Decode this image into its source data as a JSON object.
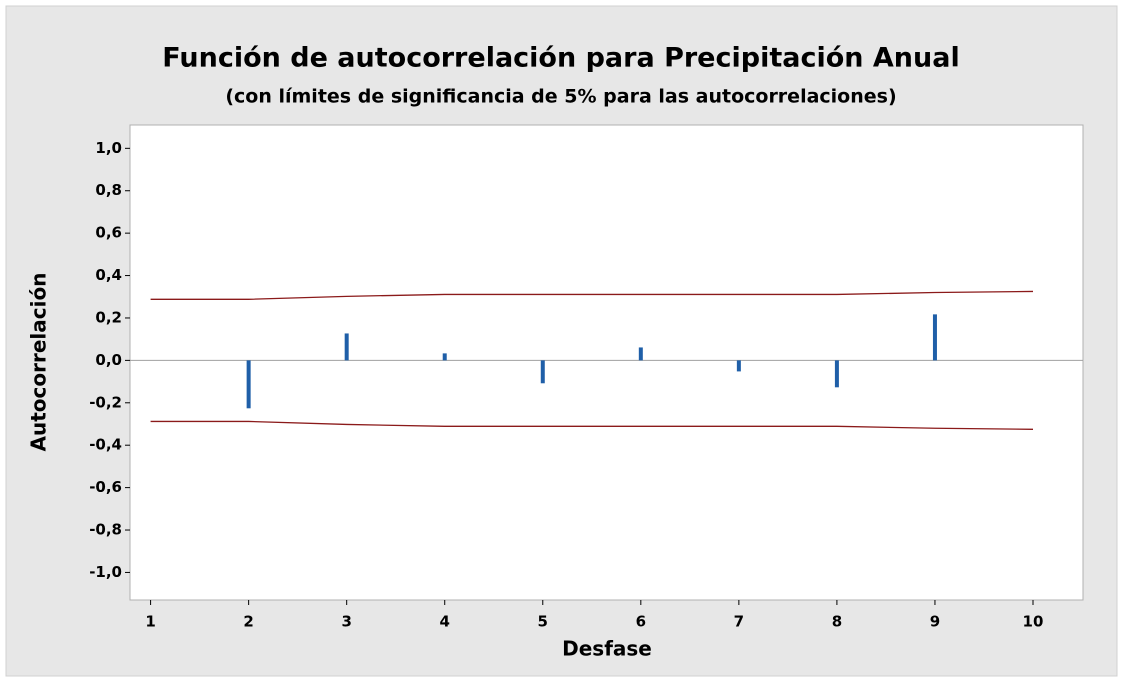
{
  "chart_data": {
    "type": "bar",
    "title": "Función de autocorrelación para Precipitación Anual",
    "subtitle": "(con límites de significancia de 5% para las autocorrelaciones)",
    "xlabel": "Desfase",
    "ylabel": "Autocorrelación",
    "x": [
      2,
      3,
      4,
      5,
      6,
      7,
      8,
      9
    ],
    "values": [
      -0.226,
      0.127,
      0.033,
      -0.108,
      0.061,
      -0.052,
      -0.127,
      0.217
    ],
    "color": "#1f5fa8",
    "limits": {
      "x": [
        1,
        2,
        3,
        4,
        5,
        6,
        7,
        8,
        9,
        10
      ],
      "upper": [
        0.288,
        0.288,
        0.302,
        0.311,
        0.311,
        0.311,
        0.311,
        0.311,
        0.32,
        0.325
      ],
      "lower": [
        -0.288,
        -0.288,
        -0.302,
        -0.311,
        -0.311,
        -0.311,
        -0.311,
        -0.311,
        -0.32,
        -0.325
      ],
      "color": "#8b1a1a"
    },
    "xlim": [
      0.79,
      10.51
    ],
    "ylim": [
      -1.13,
      1.11
    ],
    "xticks": [
      1,
      2,
      3,
      4,
      5,
      6,
      7,
      8,
      9,
      10
    ],
    "yticks": [
      {
        "value": -1.0,
        "label": "-1,0"
      },
      {
        "value": -0.8,
        "label": "-0,8"
      },
      {
        "value": -0.6,
        "label": "-0,6"
      },
      {
        "value": -0.4,
        "label": "-0,4"
      },
      {
        "value": -0.2,
        "label": "-0,2"
      },
      {
        "value": 0.0,
        "label": "0,0"
      },
      {
        "value": 0.2,
        "label": "0,2"
      },
      {
        "value": 0.4,
        "label": "0,4"
      },
      {
        "value": 0.6,
        "label": "0,6"
      },
      {
        "value": 0.8,
        "label": "0,8"
      },
      {
        "value": 1.0,
        "label": "1,0"
      }
    ]
  }
}
